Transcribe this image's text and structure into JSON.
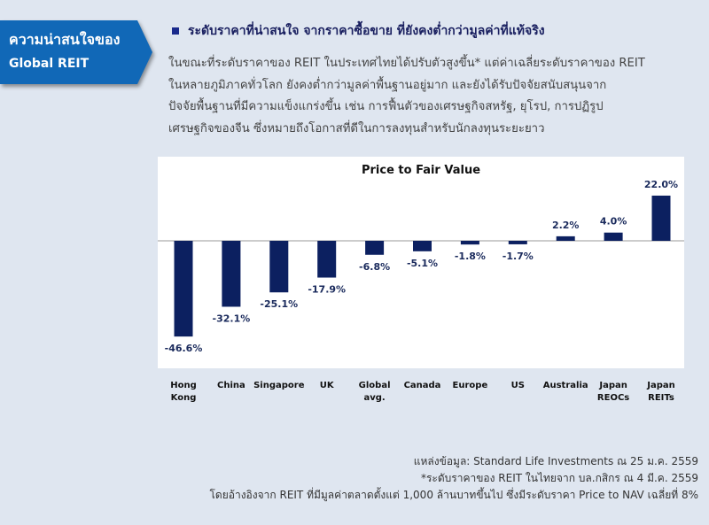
{
  "tag": {
    "line1": "ความน่าสนใจของ",
    "line2": "Global REIT"
  },
  "heading": "ระดับราคาที่น่าสนใจ จากราคาซื้อขาย ที่ยังคงต่ำกว่ามูลค่าที่แท้จริง",
  "paragraph": [
    "ในขณะที่ระดับราคาของ REIT ในประเทศไทยได้ปรับตัวสูงขึ้น* แต่ค่าเฉลี่ยระดับราคาของ REIT",
    "ในหลายภูมิภาคทั่วโลก ยังคงต่ำกว่ามูลค่าพื้นฐานอยู่มาก  และยังได้รับปัจจัยสนับสนุนจาก",
    "ปัจจัยพื้นฐานที่มีความแข็งแกร่งขึ้น เช่น การฟื้นตัวของเศรษฐกิจสหรัฐ,  ยุโรป,  การปฏิรูป",
    "เศรษฐกิจของจีน ซึ่งหมายถึงโอกาสที่ดีในการลงทุนสำหรับนักลงทุนระยะยาว"
  ],
  "chart_data": {
    "type": "bar",
    "title": "Price to Fair Value",
    "categories": [
      "Hong Kong",
      "China",
      "Singapore",
      "UK",
      "Global avg.",
      "Canada",
      "Europe",
      "US",
      "Australia",
      "Japan REOCs",
      "Japan REITs"
    ],
    "category_lines": [
      [
        "Hong",
        "Kong"
      ],
      [
        "China"
      ],
      [
        "Singapore"
      ],
      [
        "UK"
      ],
      [
        "Global",
        "avg."
      ],
      [
        "Canada"
      ],
      [
        "Europe"
      ],
      [
        "US"
      ],
      [
        "Australia"
      ],
      [
        "Japan",
        "REOCs"
      ],
      [
        "Japan",
        "REITs"
      ]
    ],
    "values": [
      -46.6,
      -32.1,
      -25.1,
      -17.9,
      -6.8,
      -5.1,
      -1.8,
      -1.7,
      2.2,
      4.0,
      22.0
    ],
    "labels": [
      "-46.6%",
      "-32.1%",
      "-25.1%",
      "-17.9%",
      "-6.8%",
      "-5.1%",
      "-1.8%",
      "-1.7%",
      "2.2%",
      "4.0%",
      "22.0%"
    ],
    "bar_color": "#0c2060",
    "ylim": [
      -55,
      30
    ]
  },
  "notes": [
    "แหล่งข้อมูล: Standard Life Investments ณ 25 ม.ค. 2559",
    "*ระดับราคาของ REIT ในไทยจาก บล.กสิกร ณ 4 มี.ค. 2559",
    "โดยอ้างอิงจาก REIT ที่มีมูลค่าตลาดตั้งแต่ 1,000 ล้านบาทขึ้นไป ซึ่งมีระดับราคา Price to NAV เฉลี่ยที่ 8%"
  ]
}
